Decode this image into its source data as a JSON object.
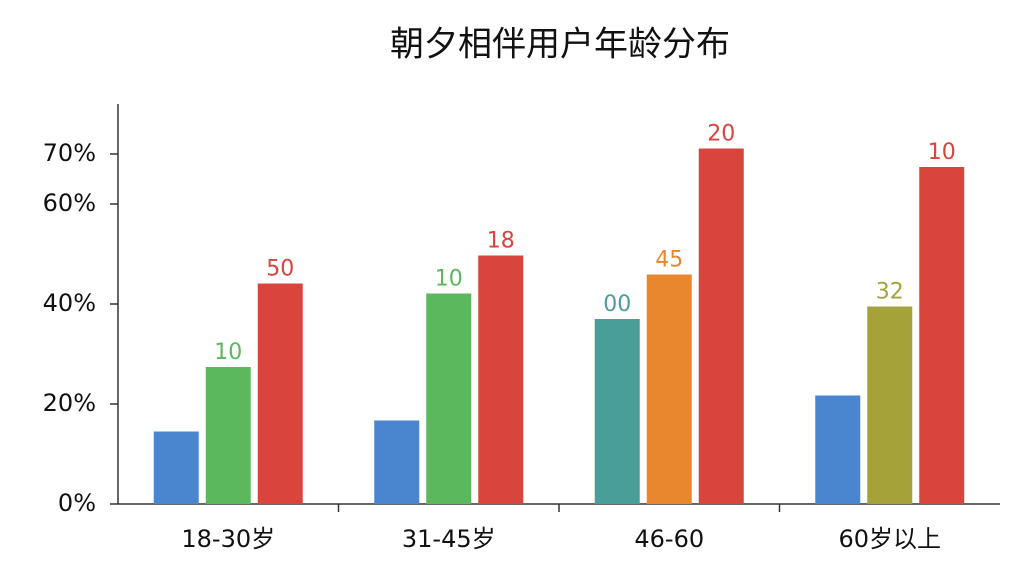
{
  "chart_data": {
    "type": "bar",
    "title": "朝夕相伴用户年龄分布",
    "categories": [
      "18-30岁",
      "31-45岁",
      "46-60",
      "60岁以上"
    ],
    "series": [
      {
        "colors": [
          "#4a86cf",
          "#4a86cf",
          "#4a9e9a",
          "#4a86cf"
        ],
        "values": [
          14.5,
          16.7,
          37.0,
          21.7
        ],
        "annotations": [
          null,
          null,
          "00",
          null
        ]
      },
      {
        "colors": [
          "#5cb85c",
          "#5cb85c",
          "#e8872e",
          "#a5a23a"
        ],
        "values": [
          27.4,
          42.1,
          45.9,
          39.5
        ],
        "annotations": [
          "10",
          "10",
          "45",
          "32"
        ]
      },
      {
        "colors": [
          "#d9443c",
          "#d9443c",
          "#d9443c",
          "#d9443c"
        ],
        "values": [
          44.1,
          49.7,
          71.1,
          67.4
        ],
        "annotations": [
          "50",
          "18",
          "20",
          "10"
        ]
      }
    ],
    "ylim": [
      0,
      80
    ],
    "yticks": [
      {
        "value": 0,
        "label": "0%"
      },
      {
        "value": 20,
        "label": "20%"
      },
      {
        "value": 40,
        "label": "40%"
      },
      {
        "value": 60,
        "label": "60%"
      },
      {
        "value": 70,
        "label": "70%"
      }
    ],
    "grid": false
  }
}
